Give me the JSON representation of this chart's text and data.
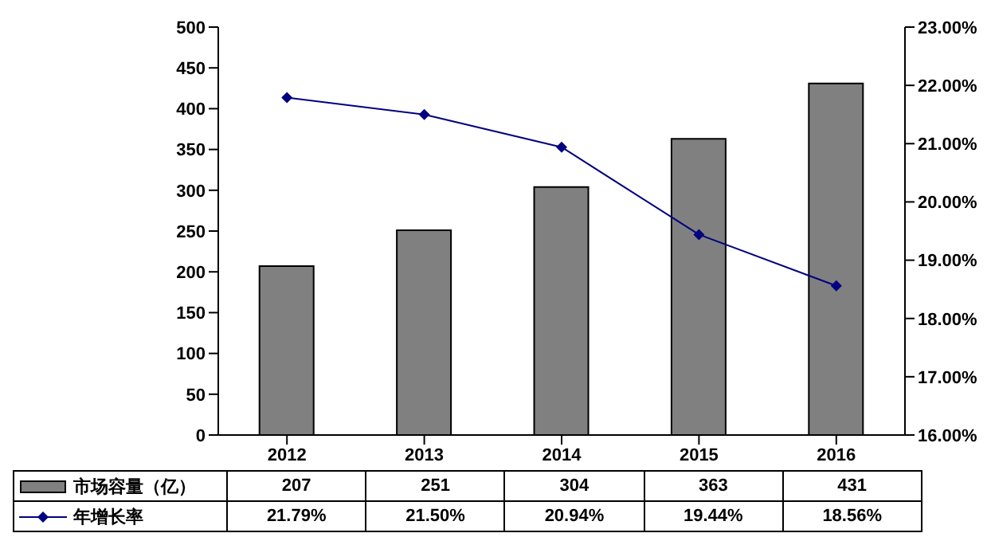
{
  "chart_data": {
    "type": "bar",
    "categories": [
      "2012",
      "2013",
      "2014",
      "2015",
      "2016"
    ],
    "series": [
      {
        "name": "市场容量（亿）",
        "color": "#808080",
        "values": [
          207,
          251,
          304,
          363,
          431
        ],
        "value_labels": [
          "207",
          "251",
          "304",
          "363",
          "431"
        ]
      },
      {
        "name": "年增长率",
        "type": "line",
        "axis": "y2",
        "color": "#000080",
        "marker": "diamond",
        "values": [
          21.79,
          21.5,
          20.94,
          19.44,
          18.56
        ],
        "value_labels": [
          "21.79%",
          "21.50%",
          "20.94%",
          "19.44%",
          "18.56%"
        ]
      }
    ],
    "ylim": [
      0,
      500
    ],
    "yticks": [
      0,
      50,
      100,
      150,
      200,
      250,
      300,
      350,
      400,
      450,
      500
    ],
    "y2lim": [
      16,
      23
    ],
    "y2ticks": [
      {
        "value": 16,
        "label": "16.00%"
      },
      {
        "value": 17,
        "label": "17.00%"
      },
      {
        "value": 18,
        "label": "18.00%"
      },
      {
        "value": 19,
        "label": "19.00%"
      },
      {
        "value": 20,
        "label": "20.00%"
      },
      {
        "value": 21,
        "label": "21.00%"
      },
      {
        "value": 22,
        "label": "22.00%"
      },
      {
        "value": 23,
        "label": "23.00%"
      }
    ],
    "legend": "bottom",
    "grid": false
  }
}
